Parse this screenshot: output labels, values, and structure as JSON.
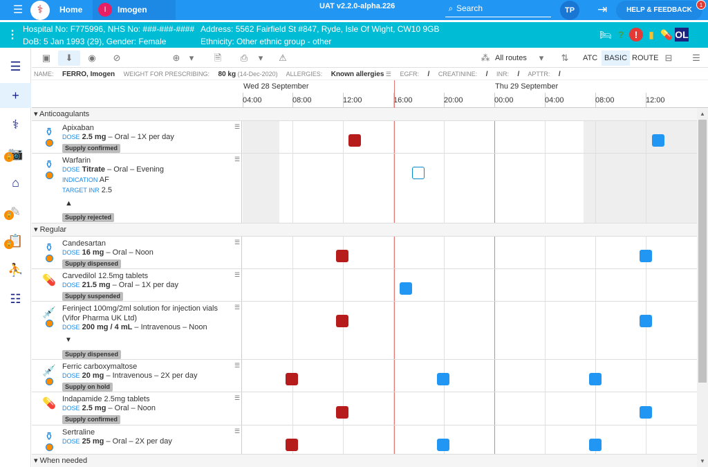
{
  "topbar": {
    "home": "Home",
    "patient_initial": "I",
    "patient_name": "Imogen FERRO",
    "env": "UAT v2.2.0-alpha.226",
    "search": "Search",
    "user_initials": "TP",
    "help": "HELP & FEEDBACK",
    "help_badge": "1"
  },
  "patient": {
    "line1": "Hospital No: F775996, NHS No: ###-###-####",
    "line2": "DoB: 5 Jan 1993 (29), Gender: Female",
    "address": "Address: 5562 Fairfield St #847, Ryde, Isle Of Wight, CW10 9GB",
    "ethnicity": "Ethnicity: Other ethnic group - other",
    "ol": "OL"
  },
  "toolbar": {
    "routes": "All routes",
    "atc": "ATC",
    "basic": "BASIC",
    "route": "ROUTE"
  },
  "info": {
    "name_label": "NAME:",
    "name": "FERRO, Imogen",
    "weight_label": "WEIGHT FOR PRESCRIBING:",
    "weight": "80 kg",
    "weight_date": "(14-Dec-2020)",
    "allergies_label": "ALLERGIES:",
    "allergies": "Known allergies",
    "egfr_label": "EGFR:",
    "egfr": "/",
    "creatinine_label": "CREATININE:",
    "creatinine": "/",
    "inr_label": "INR:",
    "inr": "/",
    "apttr_label": "APTTR:",
    "apttr": "/"
  },
  "timeline": {
    "days": [
      "Wed 28 September",
      "Thu 29 September"
    ],
    "hours": [
      "04:00",
      "08:00",
      "12:00",
      "16:00",
      "20:00",
      "00:00",
      "04:00",
      "08:00",
      "12:00"
    ]
  },
  "groups": {
    "anticoagulants": "Anticoagulants",
    "regular": "Regular",
    "when_needed": "When needed"
  },
  "meds": [
    {
      "name": "Apixaban",
      "dose_label": "DOSE",
      "dose": "2.5 mg",
      "route": "– Oral – 1X per day",
      "supply": "Supply confirmed"
    },
    {
      "name": "Warfarin",
      "dose_label": "DOSE",
      "dose": "Titrate",
      "route": "– Oral – Evening",
      "indication_label": "INDICATION",
      "indication": "AF",
      "target_label": "TARGET INR",
      "target": "2.5",
      "supply": "Supply rejected"
    },
    {
      "name": "Candesartan",
      "dose_label": "DOSE",
      "dose": "16 mg",
      "route": "– Oral – Noon",
      "supply": "Supply dispensed"
    },
    {
      "name": "Carvedilol 12.5mg tablets",
      "dose_label": "DOSE",
      "dose": "21.5 mg",
      "route": "– Oral – 1X per day",
      "supply": "Supply suspended"
    },
    {
      "name": "Ferinject 100mg/2ml solution for injection vials (Vifor Pharma UK Ltd)",
      "dose_label": "DOSE",
      "dose": "200 mg / 4 mL",
      "route": "– Intravenous – Noon",
      "supply": "Supply dispensed"
    },
    {
      "name": "Ferric carboxymaltose",
      "dose_label": "DOSE",
      "dose": "20 mg",
      "route": "– Intravenous – 2X per day",
      "supply": "Supply on hold"
    },
    {
      "name": "Indapamide 2.5mg tablets",
      "dose_label": "DOSE",
      "dose": "2.5 mg",
      "route": "– Oral – Noon",
      "supply": "Supply confirmed"
    },
    {
      "name": "Sertraline",
      "dose_label": "DOSE",
      "dose": "25 mg",
      "route": "– Oral – 2X per day"
    }
  ],
  "colors": {
    "accent": "#2196f3",
    "patient_bar": "#00bcd4",
    "missed": "#b71c1c",
    "due": "#2196f3"
  }
}
